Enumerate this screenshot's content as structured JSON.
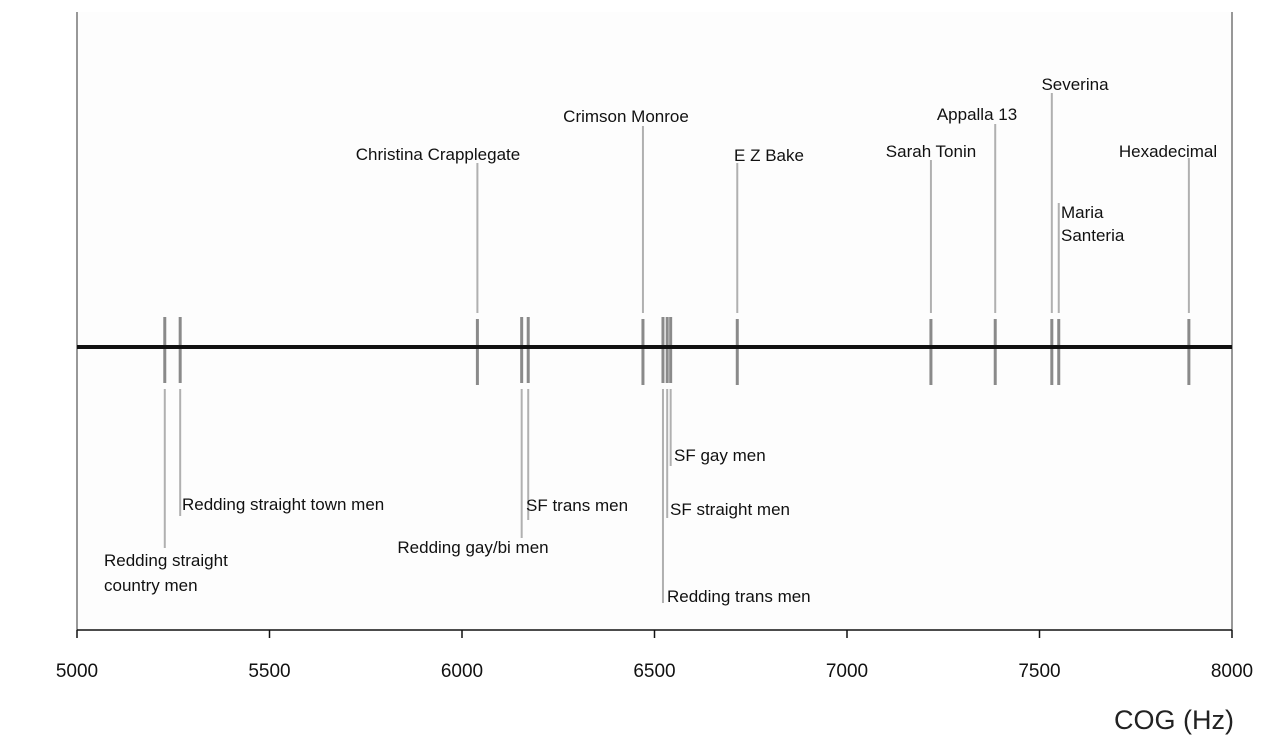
{
  "chart_data": {
    "type": "scatter",
    "xlabel": "COG (Hz)",
    "xlim": [
      5000,
      8000
    ],
    "xticks": [
      5000,
      5500,
      6000,
      6500,
      7000,
      7500,
      8000
    ],
    "grid": false,
    "above_axis": [
      {
        "name": "Christina Crapplegate",
        "x": 6040
      },
      {
        "name": "Crimson Monroe",
        "x": 6470
      },
      {
        "name": "E Z Bake",
        "x": 6715
      },
      {
        "name": "Sarah Tonin",
        "x": 7218
      },
      {
        "name": "Appalla 13",
        "x": 7385
      },
      {
        "name": "Severina",
        "x": 7532
      },
      {
        "name": "Maria Santeria",
        "x": 7550,
        "lines": [
          "Maria",
          "Santeria"
        ]
      },
      {
        "name": "Hexadecimal",
        "x": 7888
      }
    ],
    "below_axis": [
      {
        "name": "Redding straight country men",
        "x": 5228,
        "lines": [
          "Redding straight",
          "country men"
        ]
      },
      {
        "name": "Redding straight town men",
        "x": 5268
      },
      {
        "name": "Redding gay/bi men",
        "x": 6155
      },
      {
        "name": "SF trans men",
        "x": 6172
      },
      {
        "name": "SF gay men",
        "x": 6542
      },
      {
        "name": "SF straight men",
        "x": 6533
      },
      {
        "name": "Redding trans men",
        "x": 6522
      }
    ]
  }
}
